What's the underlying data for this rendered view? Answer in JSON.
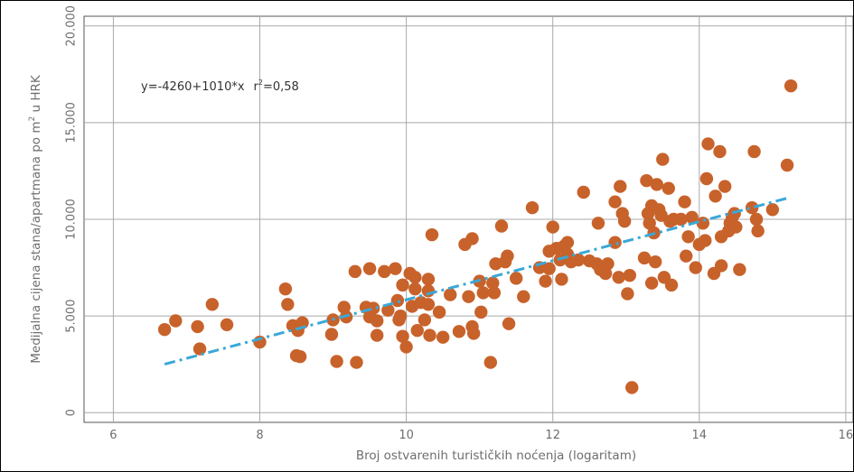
{
  "chart_data": {
    "type": "scatter",
    "title": "",
    "xlabel": "Broj ostvarenih turističkih noćenja (logaritam)",
    "ylabel": "Medijalna cijena stana/apartmana po m",
    "ylabel_sup": "2",
    "ylabel_suffix": " u HRK",
    "annotation": "y=-4260+1010*x",
    "r2_label": "r",
    "r2_sup": "2",
    "r2_value": "=0,58",
    "xlim": [
      5.6,
      16.1
    ],
    "ylim": [
      -500,
      20500
    ],
    "xticks": [
      6,
      8,
      10,
      12,
      14,
      16
    ],
    "xtick_labels": [
      "6",
      "8",
      "10",
      "12",
      "14",
      "16"
    ],
    "yticks": [
      0,
      5000,
      10000,
      15000,
      20000
    ],
    "ytick_labels": [
      "0",
      "5.000",
      "10.000",
      "15.000",
      "20.000"
    ],
    "grid": true,
    "point_color": "#c8622b",
    "trend_color": "#3aa8d8",
    "trendline": {
      "intercept": -4260,
      "slope": 1010,
      "x_start": 6.7,
      "x_end": 15.2,
      "style": "dash-dot"
    },
    "points": [
      [
        6.7,
        4300
      ],
      [
        6.85,
        4750
      ],
      [
        7.15,
        4450
      ],
      [
        7.18,
        3300
      ],
      [
        7.35,
        5600
      ],
      [
        7.55,
        4550
      ],
      [
        8.0,
        3650
      ],
      [
        8.35,
        6400
      ],
      [
        8.38,
        5600
      ],
      [
        8.45,
        4500
      ],
      [
        8.5,
        2950
      ],
      [
        8.52,
        4250
      ],
      [
        8.58,
        4650
      ],
      [
        8.55,
        2900
      ],
      [
        8.98,
        4050
      ],
      [
        9.0,
        4800
      ],
      [
        9.05,
        2650
      ],
      [
        9.15,
        5450
      ],
      [
        9.18,
        4950
      ],
      [
        9.3,
        7300
      ],
      [
        9.32,
        2600
      ],
      [
        9.45,
        5450
      ],
      [
        9.5,
        7450
      ],
      [
        9.5,
        4950
      ],
      [
        9.55,
        5400
      ],
      [
        9.6,
        4750
      ],
      [
        9.6,
        4000
      ],
      [
        9.7,
        7300
      ],
      [
        9.75,
        5300
      ],
      [
        9.85,
        7450
      ],
      [
        9.88,
        5800
      ],
      [
        9.9,
        4800
      ],
      [
        9.92,
        5000
      ],
      [
        9.95,
        6600
      ],
      [
        9.95,
        3950
      ],
      [
        10.0,
        3400
      ],
      [
        10.05,
        7200
      ],
      [
        10.08,
        5500
      ],
      [
        10.12,
        7000
      ],
      [
        10.12,
        6400
      ],
      [
        10.15,
        4250
      ],
      [
        10.2,
        5700
      ],
      [
        10.25,
        4800
      ],
      [
        10.3,
        6900
      ],
      [
        10.3,
        6300
      ],
      [
        10.3,
        5600
      ],
      [
        10.32,
        4000
      ],
      [
        10.35,
        9200
      ],
      [
        10.45,
        5200
      ],
      [
        10.5,
        3900
      ],
      [
        10.6,
        6100
      ],
      [
        10.72,
        4200
      ],
      [
        10.8,
        8700
      ],
      [
        10.85,
        6000
      ],
      [
        10.9,
        9000
      ],
      [
        10.9,
        4450
      ],
      [
        10.92,
        4100
      ],
      [
        11.0,
        6800
      ],
      [
        11.02,
        5200
      ],
      [
        11.05,
        6200
      ],
      [
        11.15,
        2600
      ],
      [
        11.18,
        6700
      ],
      [
        11.2,
        6200
      ],
      [
        11.22,
        7700
      ],
      [
        11.3,
        9650
      ],
      [
        11.35,
        7800
      ],
      [
        11.38,
        8100
      ],
      [
        11.4,
        4600
      ],
      [
        11.5,
        6950
      ],
      [
        11.6,
        6000
      ],
      [
        11.72,
        10600
      ],
      [
        11.82,
        7500
      ],
      [
        11.9,
        6800
      ],
      [
        11.95,
        7450
      ],
      [
        11.95,
        8350
      ],
      [
        12.0,
        9600
      ],
      [
        12.05,
        8500
      ],
      [
        12.1,
        7900
      ],
      [
        12.12,
        6900
      ],
      [
        12.15,
        8600
      ],
      [
        12.2,
        8200
      ],
      [
        12.2,
        8800
      ],
      [
        12.25,
        7800
      ],
      [
        12.35,
        7900
      ],
      [
        12.42,
        11400
      ],
      [
        12.5,
        7850
      ],
      [
        12.6,
        7700
      ],
      [
        12.62,
        9800
      ],
      [
        12.65,
        7400
      ],
      [
        12.72,
        7200
      ],
      [
        12.75,
        7700
      ],
      [
        12.85,
        8800
      ],
      [
        12.85,
        10900
      ],
      [
        12.9,
        7000
      ],
      [
        12.92,
        11700
      ],
      [
        12.95,
        10300
      ],
      [
        12.98,
        9900
      ],
      [
        13.02,
        6150
      ],
      [
        13.05,
        7100
      ],
      [
        13.08,
        1300
      ],
      [
        13.25,
        8000
      ],
      [
        13.28,
        12000
      ],
      [
        13.3,
        10300
      ],
      [
        13.32,
        9800
      ],
      [
        13.35,
        10700
      ],
      [
        13.35,
        6700
      ],
      [
        13.38,
        9300
      ],
      [
        13.4,
        7800
      ],
      [
        13.42,
        11800
      ],
      [
        13.45,
        10500
      ],
      [
        13.48,
        10200
      ],
      [
        13.5,
        13100
      ],
      [
        13.52,
        7000
      ],
      [
        13.58,
        11600
      ],
      [
        13.6,
        9900
      ],
      [
        13.62,
        6600
      ],
      [
        13.65,
        10000
      ],
      [
        13.75,
        10000
      ],
      [
        13.8,
        10900
      ],
      [
        13.82,
        8100
      ],
      [
        13.85,
        9100
      ],
      [
        13.9,
        10100
      ],
      [
        13.95,
        7500
      ],
      [
        14.0,
        8700
      ],
      [
        14.05,
        9800
      ],
      [
        14.08,
        8900
      ],
      [
        14.1,
        12100
      ],
      [
        14.12,
        13900
      ],
      [
        14.2,
        7200
      ],
      [
        14.22,
        11200
      ],
      [
        14.28,
        13500
      ],
      [
        14.3,
        9100
      ],
      [
        14.3,
        7600
      ],
      [
        14.35,
        11700
      ],
      [
        14.4,
        9400
      ],
      [
        14.42,
        9800
      ],
      [
        14.45,
        10100
      ],
      [
        14.48,
        10300
      ],
      [
        14.5,
        9600
      ],
      [
        14.55,
        7400
      ],
      [
        14.72,
        10600
      ],
      [
        14.75,
        13500
      ],
      [
        14.78,
        10000
      ],
      [
        14.8,
        9400
      ],
      [
        15.0,
        10500
      ],
      [
        15.2,
        12800
      ],
      [
        15.25,
        16900
      ]
    ]
  }
}
